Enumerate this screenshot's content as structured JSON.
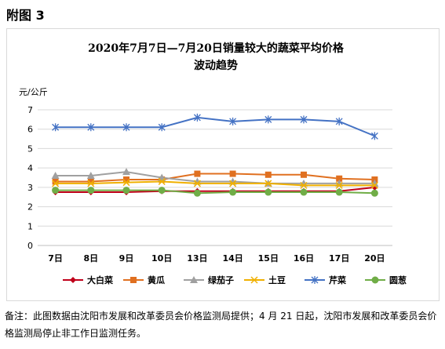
{
  "figure_label": "附图 3",
  "note": "备注：此图数据由沈阳市发展和改革委员会价格监测局提供；4 月 21 日起，沈阳市发展和改革委员会价格监测局停止非工作日监测任务。",
  "chart_data": {
    "type": "line",
    "title": "2020年7月7日—7月20日销量较大的蔬菜平均价格",
    "subtitle": "波动趋势",
    "ylabel": "元/公斤",
    "xlabel": "",
    "ylim": [
      0,
      7
    ],
    "yticks": [
      0,
      1,
      2,
      3,
      4,
      5,
      6,
      7
    ],
    "grid": true,
    "legend_position": "bottom",
    "categories": [
      "7日",
      "8日",
      "9日",
      "10日",
      "13日",
      "14日",
      "15日",
      "16日",
      "17日",
      "20日"
    ],
    "series": [
      {
        "name": "大白菜",
        "color": "#c0001a",
        "marker": "diamond",
        "values": [
          2.75,
          2.75,
          2.75,
          2.8,
          2.8,
          2.8,
          2.8,
          2.8,
          2.8,
          3.0
        ]
      },
      {
        "name": "黄瓜",
        "color": "#e07020",
        "marker": "square",
        "values": [
          3.3,
          3.3,
          3.4,
          3.4,
          3.7,
          3.7,
          3.65,
          3.65,
          3.45,
          3.4
        ]
      },
      {
        "name": "绿茄子",
        "color": "#a0a0a0",
        "marker": "triangle",
        "values": [
          3.6,
          3.6,
          3.8,
          3.5,
          3.3,
          3.3,
          3.2,
          3.2,
          3.2,
          3.2
        ]
      },
      {
        "name": "土豆",
        "color": "#f0b000",
        "marker": "x",
        "values": [
          3.2,
          3.2,
          3.25,
          3.3,
          3.2,
          3.2,
          3.2,
          3.1,
          3.1,
          3.1
        ]
      },
      {
        "name": "芹菜",
        "color": "#4472c4",
        "marker": "asterisk",
        "values": [
          6.1,
          6.1,
          6.1,
          6.1,
          6.6,
          6.4,
          6.5,
          6.5,
          6.4,
          5.65
        ]
      },
      {
        "name": "圆葱",
        "color": "#70ad47",
        "marker": "circle",
        "values": [
          2.85,
          2.85,
          2.85,
          2.85,
          2.7,
          2.75,
          2.75,
          2.75,
          2.75,
          2.7
        ]
      }
    ]
  }
}
